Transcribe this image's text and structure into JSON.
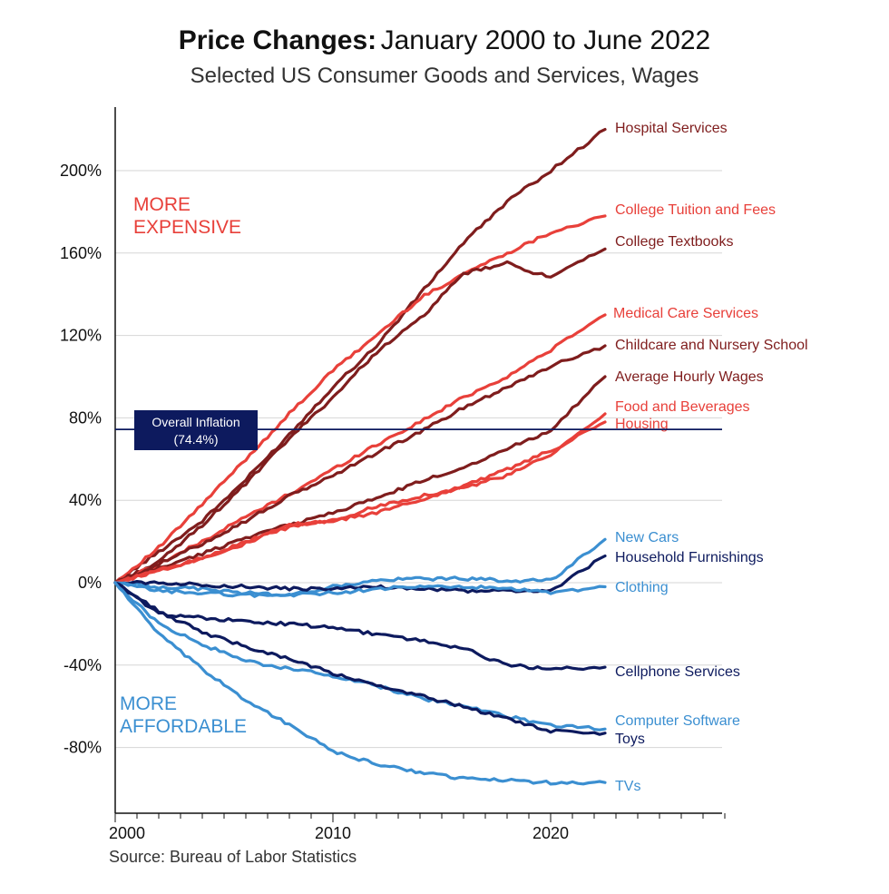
{
  "header": {
    "title_bold": "Price Changes:",
    "title_rest": "January 2000 to June 2022",
    "subtitle": "Selected US Consumer Goods and Services, Wages"
  },
  "source": "Source: Bureau of Labor Statistics",
  "annotations": {
    "more_expensive": [
      "MORE",
      "EXPENSIVE"
    ],
    "more_affordable": [
      "MORE",
      "AFFORDABLE"
    ],
    "overall_inflation": [
      "Overall Inflation",
      "(74.4%)"
    ],
    "overall_inflation_value": 74.4
  },
  "colors": {
    "dark_red": "#7f1d1d",
    "red": "#e8403a",
    "navy": "#0d1a5e",
    "light_blue": "#3b8fd1"
  },
  "chart_data": {
    "type": "line",
    "title": "Price Changes: January 2000 to June 2022",
    "subtitle": "Selected US Consumer Goods and Services, Wages",
    "xlabel": "",
    "ylabel": "",
    "xlim": [
      2000,
      2028
    ],
    "ylim": [
      -100,
      230
    ],
    "x_ticks": [
      2000,
      2010,
      2020
    ],
    "y_ticks": [
      -80,
      -40,
      0,
      40,
      80,
      120,
      160,
      200
    ],
    "y_tick_labels": [
      "-80%",
      "-40%",
      "0%",
      "40%",
      "80%",
      "120%",
      "160%",
      "200%"
    ],
    "x_tick_labels": [
      "2000",
      "2010",
      "2020"
    ],
    "grid": "horizontal",
    "reference_line": {
      "label": "Overall Inflation (74.4%)",
      "value": 74.4
    },
    "x": [
      2000,
      2002,
      2004,
      2006,
      2008,
      2010,
      2012,
      2014,
      2016,
      2018,
      2020,
      2022.5
    ],
    "series": [
      {
        "name": "Hospital Services",
        "color": "#7f1d1d",
        "values": [
          0,
          15,
          30,
          50,
          72,
          95,
          115,
          140,
          165,
          185,
          200,
          220
        ]
      },
      {
        "name": "College Tuition and Fees",
        "color": "#e8403a",
        "values": [
          0,
          17,
          38,
          60,
          82,
          103,
          120,
          138,
          150,
          160,
          170,
          178
        ]
      },
      {
        "name": "College Textbooks",
        "color": "#7f1d1d",
        "values": [
          0,
          10,
          28,
          48,
          70,
          90,
          112,
          128,
          150,
          155,
          148,
          162
        ]
      },
      {
        "name": "Medical Care Services",
        "color": "#e8403a",
        "values": [
          0,
          9,
          20,
          32,
          43,
          55,
          67,
          78,
          90,
          100,
          113,
          130
        ]
      },
      {
        "name": "Childcare and Nursery School",
        "color": "#7f1d1d",
        "values": [
          0,
          9,
          19,
          30,
          42,
          52,
          63,
          73,
          85,
          95,
          105,
          115
        ]
      },
      {
        "name": "Average Hourly Wages",
        "color": "#7f1d1d",
        "values": [
          0,
          7,
          14,
          22,
          28,
          34,
          41,
          49,
          56,
          65,
          74,
          100
        ]
      },
      {
        "name": "Food and Beverages",
        "color": "#e8403a",
        "values": [
          0,
          6,
          12,
          19,
          28,
          30,
          37,
          42,
          46,
          52,
          62,
          82
        ]
      },
      {
        "name": "Housing",
        "color": "#e8403a",
        "values": [
          0,
          6,
          12,
          20,
          27,
          30,
          34,
          40,
          47,
          55,
          64,
          78
        ]
      },
      {
        "name": "New Cars",
        "color": "#3b8fd1",
        "values": [
          0,
          -2,
          -3,
          -5,
          -6,
          -2,
          1,
          2,
          2,
          1,
          1,
          21
        ]
      },
      {
        "name": "Household Furnishings",
        "color": "#0d1a5e",
        "values": [
          0,
          0,
          -1,
          -2,
          -3,
          -3,
          -2,
          -3,
          -4,
          -4,
          -4,
          13
        ]
      },
      {
        "name": "Clothing",
        "color": "#3b8fd1",
        "values": [
          0,
          -4,
          -5,
          -6,
          -6,
          -5,
          -3,
          -2,
          -2,
          -3,
          -5,
          -2
        ]
      },
      {
        "name": "Cellphone Services",
        "color": "#0d1a5e",
        "values": [
          0,
          -15,
          -17,
          -19,
          -20,
          -22,
          -25,
          -28,
          -32,
          -40,
          -42,
          -41
        ]
      },
      {
        "name": "Computer Software",
        "color": "#3b8fd1",
        "values": [
          0,
          -20,
          -30,
          -38,
          -42,
          -45,
          -50,
          -56,
          -60,
          -65,
          -69,
          -71
        ]
      },
      {
        "name": "Toys",
        "color": "#0d1a5e",
        "values": [
          0,
          -14,
          -24,
          -31,
          -37,
          -44,
          -50,
          -55,
          -60,
          -66,
          -72,
          -73
        ]
      },
      {
        "name": "TVs",
        "color": "#3b8fd1",
        "values": [
          0,
          -25,
          -42,
          -57,
          -69,
          -82,
          -88,
          -92,
          -95,
          -96,
          -97,
          -97
        ]
      }
    ]
  }
}
